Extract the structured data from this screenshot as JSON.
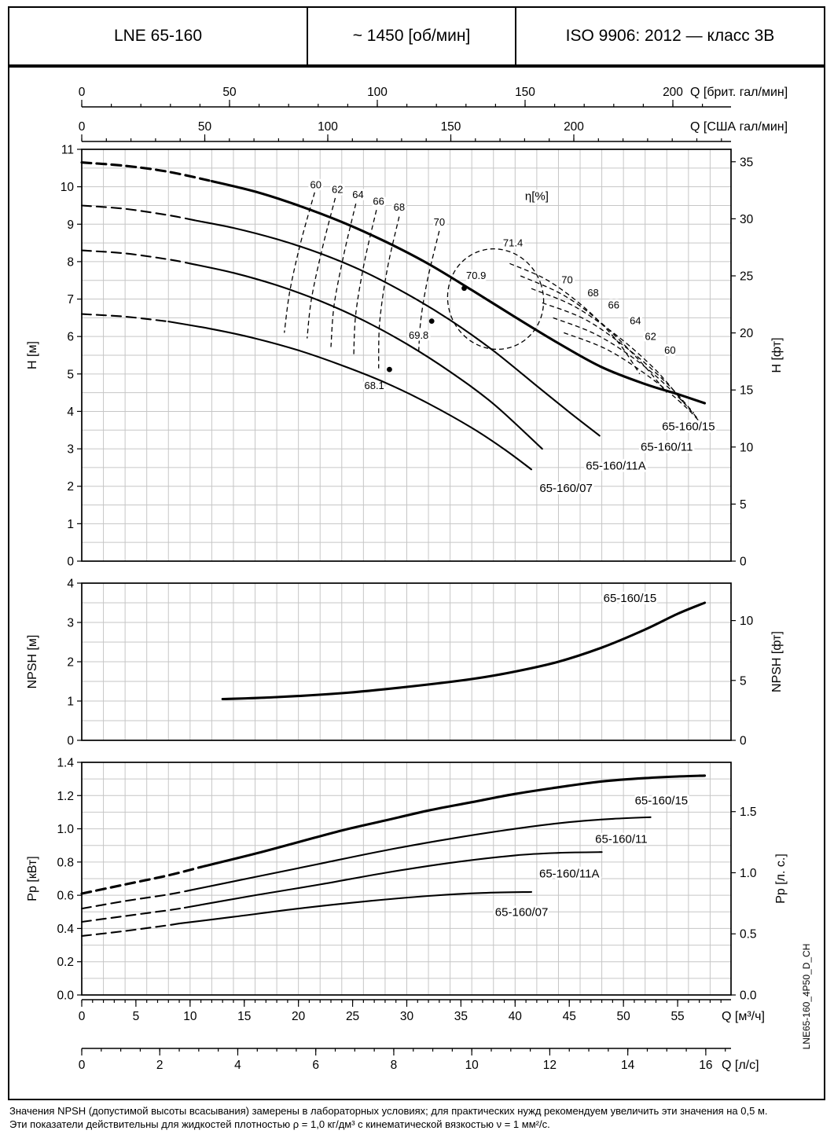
{
  "header": {
    "model": "LNE 65-160",
    "speed": "~ 1450 [об/мин]",
    "standard": "ISO 9906: 2012 — класс 3В"
  },
  "doc_code": "LNE65-160_4P50_D_CH",
  "footer": {
    "line1": "Значения NPSH (допустимой высоты всасывания) замерены в лабораторных условиях; для практических нужд рекомендуем увеличить эти значения на 0,5 м.",
    "line2": "Эти показатели действительны для жидкостей плотностью ρ = 1,0 кг/дм³ с кинематической вязкостью ν = 1 мм²/с."
  },
  "chart_data": {
    "type": "line",
    "title": "LNE 65-160 pump performance curves at ~1450 об/мин",
    "axes": {
      "q_m3h": {
        "label": "Q [м³/ч]",
        "ticks": [
          0,
          5,
          10,
          15,
          20,
          25,
          30,
          35,
          40,
          45,
          50,
          55
        ],
        "range": [
          0,
          59.9
        ]
      },
      "q_ls": {
        "label": "Q [л/с]",
        "ticks": [
          0,
          2,
          4,
          6,
          8,
          10,
          12,
          14,
          16
        ],
        "range": [
          0,
          16.6
        ]
      },
      "q_imp_gpm": {
        "label": "Q [брит. гал/мин]",
        "ticks": [
          0,
          50,
          100,
          150,
          200
        ]
      },
      "q_us_gpm": {
        "label": "Q [США гал/мин]",
        "ticks": [
          0,
          50,
          100,
          150,
          200
        ]
      },
      "h_m": {
        "label": "H [м]",
        "ticks": [
          0,
          1,
          2,
          3,
          4,
          5,
          6,
          7,
          8,
          9,
          10,
          11
        ],
        "range": [
          0,
          11
        ]
      },
      "h_ft": {
        "label": "H [фт]",
        "ticks": [
          0,
          5,
          10,
          15,
          20,
          25,
          30,
          35
        ]
      },
      "npsh_m": {
        "label": "NPSH [м]",
        "ticks": [
          0,
          1,
          2,
          3,
          4
        ],
        "range": [
          0,
          4
        ]
      },
      "npsh_ft": {
        "label": "NPSH [фт]",
        "ticks": [
          0,
          5,
          10
        ]
      },
      "p_kw": {
        "label": "Pp [кВт]",
        "ticks": [
          0.0,
          0.2,
          0.4,
          0.6,
          0.8,
          1.0,
          1.2,
          1.4
        ],
        "range": [
          0,
          1.4
        ]
      },
      "p_hp": {
        "label": "Pp [л. с.]",
        "ticks": [
          0.0,
          0.5,
          1.0,
          1.5
        ]
      }
    },
    "head_curves": [
      {
        "name": "65-160/15",
        "dashed": [
          [
            0,
            10.65
          ],
          [
            4,
            10.56
          ],
          [
            8,
            10.4
          ],
          [
            12,
            10.15
          ]
        ],
        "solid": [
          [
            12,
            10.15
          ],
          [
            16,
            9.87
          ],
          [
            20,
            9.5
          ],
          [
            24,
            9.06
          ],
          [
            28,
            8.54
          ],
          [
            32,
            7.94
          ],
          [
            36,
            7.24
          ],
          [
            40,
            6.52
          ],
          [
            44,
            5.82
          ],
          [
            48,
            5.18
          ],
          [
            52,
            4.73
          ],
          [
            55,
            4.46
          ],
          [
            57.5,
            4.22
          ]
        ],
        "label_pos": [
          56,
          3.6
        ]
      },
      {
        "name": "65-160/11",
        "dashed": [
          [
            0,
            9.5
          ],
          [
            4,
            9.41
          ],
          [
            8,
            9.24
          ],
          [
            10.5,
            9.1
          ]
        ],
        "solid": [
          [
            10.5,
            9.1
          ],
          [
            14,
            8.9
          ],
          [
            18,
            8.6
          ],
          [
            22,
            8.22
          ],
          [
            26,
            7.74
          ],
          [
            30,
            7.14
          ],
          [
            34,
            6.44
          ],
          [
            38,
            5.62
          ],
          [
            42,
            4.68
          ],
          [
            45,
            3.98
          ],
          [
            47.8,
            3.35
          ]
        ],
        "label_pos": [
          54,
          3.05
        ]
      },
      {
        "name": "65-160/11A",
        "dashed": [
          [
            0,
            8.3
          ],
          [
            4,
            8.22
          ],
          [
            8,
            8.06
          ],
          [
            10,
            7.95
          ]
        ],
        "solid": [
          [
            10,
            7.95
          ],
          [
            14,
            7.7
          ],
          [
            18,
            7.37
          ],
          [
            22,
            6.95
          ],
          [
            26,
            6.43
          ],
          [
            30,
            5.8
          ],
          [
            34,
            5.06
          ],
          [
            38,
            4.2
          ],
          [
            42.5,
            3.0
          ]
        ],
        "label_pos": [
          49.3,
          2.55
        ]
      },
      {
        "name": "65-160/07",
        "dashed": [
          [
            0,
            6.6
          ],
          [
            4,
            6.53
          ],
          [
            8,
            6.4
          ]
        ],
        "solid": [
          [
            8,
            6.4
          ],
          [
            12,
            6.2
          ],
          [
            16,
            5.95
          ],
          [
            20,
            5.63
          ],
          [
            24,
            5.23
          ],
          [
            28,
            4.77
          ],
          [
            32,
            4.21
          ],
          [
            36,
            3.56
          ],
          [
            39,
            2.99
          ],
          [
            41.5,
            2.45
          ]
        ],
        "label_pos": [
          44.7,
          1.95
        ]
      }
    ],
    "efficiency": {
      "unit_label": "η[%]",
      "unit_label_pos": [
        42,
        9.75
      ],
      "contour_labels": [
        {
          "text": "60",
          "pos": [
            21.6,
            10.05
          ]
        },
        {
          "text": "62",
          "pos": [
            23.6,
            9.92
          ]
        },
        {
          "text": "64",
          "pos": [
            25.5,
            9.78
          ]
        },
        {
          "text": "66",
          "pos": [
            27.4,
            9.6
          ]
        },
        {
          "text": "68",
          "pos": [
            29.3,
            9.45
          ]
        },
        {
          "text": "70",
          "pos": [
            33.0,
            9.05
          ]
        },
        {
          "text": "70",
          "pos": [
            44.8,
            7.5
          ]
        },
        {
          "text": "68",
          "pos": [
            47.2,
            7.16
          ]
        },
        {
          "text": "66",
          "pos": [
            49.1,
            6.83
          ]
        },
        {
          "text": "64",
          "pos": [
            51.1,
            6.41
          ]
        },
        {
          "text": "62",
          "pos": [
            52.5,
            5.99
          ]
        },
        {
          "text": "60",
          "pos": [
            54.3,
            5.63
          ]
        }
      ],
      "left_branches": [
        {
          "value": 60,
          "points": [
            [
              21.5,
              9.85
            ],
            [
              20.2,
              8.5
            ],
            [
              19.2,
              7.2
            ],
            [
              18.7,
              6.1
            ]
          ]
        },
        {
          "value": 62,
          "points": [
            [
              23.4,
              9.7
            ],
            [
              22.2,
              8.35
            ],
            [
              21.2,
              7.0
            ],
            [
              20.8,
              5.95
            ]
          ]
        },
        {
          "value": 64,
          "points": [
            [
              25.3,
              9.55
            ],
            [
              24.2,
              8.2
            ],
            [
              23.3,
              6.85
            ],
            [
              23.0,
              5.72
            ]
          ]
        },
        {
          "value": 66,
          "points": [
            [
              27.2,
              9.38
            ],
            [
              26.1,
              8.0
            ],
            [
              25.3,
              6.62
            ],
            [
              25.1,
              5.48
            ]
          ]
        },
        {
          "value": 68,
          "points": [
            [
              29.3,
              9.2
            ],
            [
              28.2,
              7.8
            ],
            [
              27.5,
              6.38
            ],
            [
              27.4,
              5.15
            ]
          ]
        },
        {
          "value": 70,
          "points": [
            [
              33.0,
              8.82
            ],
            [
              31.9,
              7.5
            ],
            [
              31.3,
              6.45
            ],
            [
              31.1,
              5.62
            ]
          ]
        }
      ],
      "right_branches": [
        {
          "value": 70,
          "points": [
            [
              39.5,
              7.95
            ],
            [
              43.0,
              7.5
            ],
            [
              46.5,
              6.75
            ],
            [
              49.5,
              5.85
            ],
            [
              51.5,
              5.0
            ]
          ]
        },
        {
          "value": 68,
          "points": [
            [
              40.5,
              7.62
            ],
            [
              44.5,
              7.1
            ],
            [
              48.0,
              6.35
            ],
            [
              51.5,
              5.35
            ],
            [
              54.0,
              4.5
            ]
          ]
        },
        {
          "value": 66,
          "points": [
            [
              41.5,
              7.28
            ],
            [
              45.5,
              6.8
            ],
            [
              49.5,
              6.0
            ],
            [
              53.0,
              5.1
            ],
            [
              55.5,
              4.25
            ]
          ]
        },
        {
          "value": 64,
          "points": [
            [
              42.5,
              6.9
            ],
            [
              46.5,
              6.45
            ],
            [
              50.5,
              5.65
            ],
            [
              54.0,
              4.75
            ],
            [
              56.5,
              3.95
            ]
          ]
        },
        {
          "value": 62,
          "points": [
            [
              43.5,
              6.5
            ],
            [
              47.5,
              6.05
            ],
            [
              51.5,
              5.3
            ],
            [
              55.0,
              4.4
            ],
            [
              57.3,
              3.65
            ]
          ]
        },
        {
          "value": 60,
          "points": [
            [
              44.5,
              6.1
            ],
            [
              48.5,
              5.65
            ],
            [
              52.5,
              4.9
            ],
            [
              55.8,
              4.1
            ],
            [
              58.0,
              3.4
            ]
          ]
        }
      ],
      "inner_contour": {
        "label": "71.4",
        "center": [
          38.2,
          7.0
        ],
        "rx_q": 4.4,
        "ry_h": 1.35,
        "rotation_deg": -20
      },
      "bep_points": [
        {
          "text": "71.4",
          "label_pos": [
            39.8,
            8.49
          ],
          "dot": null
        },
        {
          "text": "70.9",
          "label_pos": [
            36.4,
            7.62
          ],
          "dot": [
            35.3,
            7.29
          ]
        },
        {
          "text": "69.8",
          "label_pos": [
            31.1,
            6.03
          ],
          "dot": [
            32.3,
            6.41
          ]
        },
        {
          "text": "68.1",
          "label_pos": [
            27.0,
            4.68
          ],
          "dot": [
            28.4,
            5.12
          ]
        }
      ]
    },
    "npsh_curve": {
      "name": "65-160/15",
      "points": [
        [
          13,
          1.05
        ],
        [
          18,
          1.1
        ],
        [
          24,
          1.2
        ],
        [
          30,
          1.36
        ],
        [
          36,
          1.56
        ],
        [
          40,
          1.75
        ],
        [
          44,
          2.0
        ],
        [
          48,
          2.36
        ],
        [
          52,
          2.82
        ],
        [
          55,
          3.22
        ],
        [
          57.5,
          3.5
        ]
      ],
      "label_pos": [
        50.6,
        3.62
      ]
    },
    "power_curves": [
      {
        "name": "65-160/15",
        "dashed": [
          [
            0,
            0.61
          ],
          [
            4,
            0.665
          ],
          [
            8,
            0.72
          ],
          [
            11,
            0.77
          ]
        ],
        "solid": [
          [
            11,
            0.77
          ],
          [
            16,
            0.85
          ],
          [
            20,
            0.92
          ],
          [
            24,
            0.99
          ],
          [
            28,
            1.05
          ],
          [
            32,
            1.11
          ],
          [
            36,
            1.16
          ],
          [
            40,
            1.21
          ],
          [
            44,
            1.25
          ],
          [
            48,
            1.285
          ],
          [
            52,
            1.305
          ],
          [
            55,
            1.315
          ],
          [
            57.5,
            1.32
          ]
        ],
        "label_pos": [
          53.5,
          1.17
        ]
      },
      {
        "name": "65-160/11",
        "dashed": [
          [
            0,
            0.52
          ],
          [
            4,
            0.565
          ],
          [
            8,
            0.605
          ],
          [
            10,
            0.63
          ]
        ],
        "solid": [
          [
            10,
            0.63
          ],
          [
            16,
            0.71
          ],
          [
            22,
            0.79
          ],
          [
            28,
            0.87
          ],
          [
            34,
            0.94
          ],
          [
            40,
            1.0
          ],
          [
            45,
            1.04
          ],
          [
            49,
            1.06
          ],
          [
            52.5,
            1.07
          ]
        ],
        "label_pos": [
          49.8,
          0.94
        ]
      },
      {
        "name": "65-160/11A",
        "dashed": [
          [
            0,
            0.44
          ],
          [
            4,
            0.475
          ],
          [
            8,
            0.51
          ],
          [
            9.5,
            0.525
          ]
        ],
        "solid": [
          [
            9.5,
            0.525
          ],
          [
            16,
            0.6
          ],
          [
            22,
            0.665
          ],
          [
            28,
            0.735
          ],
          [
            34,
            0.795
          ],
          [
            40,
            0.84
          ],
          [
            44,
            0.855
          ],
          [
            48,
            0.86
          ]
        ],
        "label_pos": [
          45,
          0.73
        ]
      },
      {
        "name": "65-160/07",
        "dashed": [
          [
            0,
            0.355
          ],
          [
            4,
            0.385
          ],
          [
            8,
            0.42
          ],
          [
            9,
            0.43
          ]
        ],
        "solid": [
          [
            9,
            0.43
          ],
          [
            14,
            0.47
          ],
          [
            20,
            0.52
          ],
          [
            26,
            0.562
          ],
          [
            32,
            0.596
          ],
          [
            37,
            0.614
          ],
          [
            41.5,
            0.62
          ]
        ],
        "label_pos": [
          40.6,
          0.5
        ]
      }
    ]
  }
}
